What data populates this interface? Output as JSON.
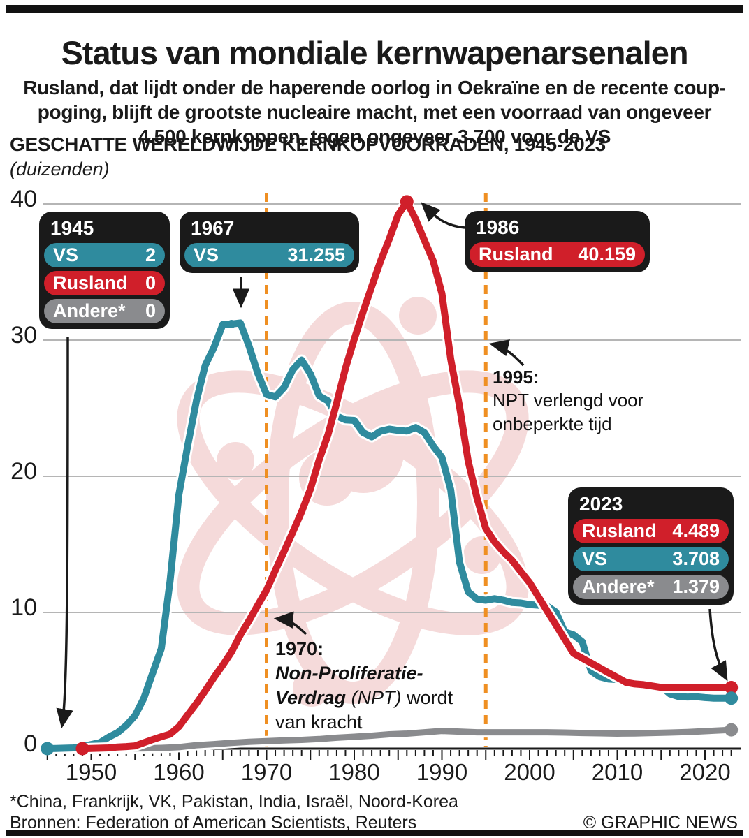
{
  "header": {
    "title": "Status van mondiale kernwapenarsenalen",
    "subtitle": "Rusland, dat lijdt onder de haperende oorlog in Oekraïne en de recente coup-\npoging, blijft de grootste nucleaire macht, met een voorraad van ongeveer\n4.500 kernkoppen, tegen ongeveer 3.700 voor de VS"
  },
  "chart_header": {
    "heading": "GESCHATTE WERELDWIJDE KERNKOPVOORRADEN, 1945-2023",
    "unit_note": "(duizenden)"
  },
  "chart_data": {
    "type": "line",
    "title": "Geschatte wereldwijde kernkopvoorraden, 1945-2023",
    "unit": "duizenden kernkoppen",
    "x_axis": {
      "range": [
        1945,
        2023
      ],
      "ticks": [
        1950,
        1960,
        1970,
        1980,
        1990,
        2000,
        2010,
        2020
      ],
      "minor_tick_every": 1
    },
    "y_axis": {
      "range": [
        0,
        40
      ],
      "ticks": [
        0,
        10,
        20,
        30,
        40
      ],
      "gridlines": true
    },
    "event_lines": [
      1970,
      1995
    ],
    "series": [
      {
        "name": "VS",
        "color": "#2f8b9e",
        "points": [
          [
            1945,
            0.0
          ],
          [
            1946,
            0.01
          ],
          [
            1947,
            0.03
          ],
          [
            1948,
            0.05
          ],
          [
            1949,
            0.17
          ],
          [
            1950,
            0.3
          ],
          [
            1951,
            0.44
          ],
          [
            1952,
            0.84
          ],
          [
            1953,
            1.17
          ],
          [
            1954,
            1.7
          ],
          [
            1955,
            2.42
          ],
          [
            1956,
            3.69
          ],
          [
            1957,
            5.54
          ],
          [
            1958,
            7.35
          ],
          [
            1959,
            12.3
          ],
          [
            1960,
            18.64
          ],
          [
            1961,
            22.23
          ],
          [
            1962,
            25.54
          ],
          [
            1963,
            28.13
          ],
          [
            1964,
            29.46
          ],
          [
            1965,
            31.14
          ],
          [
            1966,
            31.18
          ],
          [
            1967,
            31.26
          ],
          [
            1968,
            29.56
          ],
          [
            1969,
            27.55
          ],
          [
            1970,
            26.01
          ],
          [
            1971,
            25.83
          ],
          [
            1972,
            26.52
          ],
          [
            1973,
            27.84
          ],
          [
            1974,
            28.54
          ],
          [
            1975,
            27.52
          ],
          [
            1976,
            25.91
          ],
          [
            1977,
            25.54
          ],
          [
            1978,
            24.42
          ],
          [
            1979,
            24.14
          ],
          [
            1980,
            24.1
          ],
          [
            1981,
            23.21
          ],
          [
            1982,
            22.89
          ],
          [
            1983,
            23.31
          ],
          [
            1984,
            23.46
          ],
          [
            1985,
            23.37
          ],
          [
            1986,
            23.32
          ],
          [
            1987,
            23.58
          ],
          [
            1988,
            23.21
          ],
          [
            1989,
            22.22
          ],
          [
            1990,
            21.39
          ],
          [
            1991,
            19.01
          ],
          [
            1992,
            13.71
          ],
          [
            1993,
            11.51
          ],
          [
            1994,
            10.98
          ],
          [
            1995,
            10.9
          ],
          [
            1996,
            11.01
          ],
          [
            1997,
            10.9
          ],
          [
            1998,
            10.73
          ],
          [
            1999,
            10.69
          ],
          [
            2000,
            10.58
          ],
          [
            2001,
            10.53
          ],
          [
            2002,
            10.46
          ],
          [
            2003,
            10.03
          ],
          [
            2004,
            8.57
          ],
          [
            2005,
            8.36
          ],
          [
            2006,
            7.85
          ],
          [
            2007,
            5.71
          ],
          [
            2008,
            5.27
          ],
          [
            2009,
            5.11
          ],
          [
            2010,
            5.07
          ],
          [
            2011,
            4.9
          ],
          [
            2012,
            4.88
          ],
          [
            2013,
            4.8
          ],
          [
            2014,
            4.72
          ],
          [
            2015,
            4.57
          ],
          [
            2016,
            4.02
          ],
          [
            2017,
            3.82
          ],
          [
            2018,
            3.79
          ],
          [
            2019,
            3.81
          ],
          [
            2020,
            3.75
          ],
          [
            2021,
            3.71
          ],
          [
            2022,
            3.71
          ],
          [
            2023,
            3.708
          ]
        ]
      },
      {
        "name": "Rusland",
        "color": "#d01f2a",
        "points": [
          [
            1949,
            0.0
          ],
          [
            1950,
            0.01
          ],
          [
            1951,
            0.03
          ],
          [
            1952,
            0.05
          ],
          [
            1953,
            0.12
          ],
          [
            1954,
            0.15
          ],
          [
            1955,
            0.2
          ],
          [
            1956,
            0.43
          ],
          [
            1957,
            0.66
          ],
          [
            1958,
            0.87
          ],
          [
            1959,
            1.06
          ],
          [
            1960,
            1.61
          ],
          [
            1961,
            2.47
          ],
          [
            1962,
            3.32
          ],
          [
            1963,
            4.24
          ],
          [
            1964,
            5.22
          ],
          [
            1965,
            6.13
          ],
          [
            1966,
            7.09
          ],
          [
            1967,
            8.34
          ],
          [
            1968,
            9.4
          ],
          [
            1969,
            10.54
          ],
          [
            1970,
            11.64
          ],
          [
            1971,
            13.09
          ],
          [
            1972,
            14.48
          ],
          [
            1973,
            15.92
          ],
          [
            1974,
            17.39
          ],
          [
            1975,
            19.06
          ],
          [
            1976,
            21.21
          ],
          [
            1977,
            23.04
          ],
          [
            1978,
            25.39
          ],
          [
            1979,
            27.94
          ],
          [
            1980,
            30.06
          ],
          [
            1981,
            32.05
          ],
          [
            1982,
            33.95
          ],
          [
            1983,
            35.8
          ],
          [
            1984,
            37.43
          ],
          [
            1985,
            39.2
          ],
          [
            1986,
            40.159
          ],
          [
            1987,
            38.86
          ],
          [
            1988,
            37.33
          ],
          [
            1989,
            35.81
          ],
          [
            1990,
            33.42
          ],
          [
            1991,
            28.6
          ],
          [
            1992,
            25.16
          ],
          [
            1993,
            21.1
          ],
          [
            1994,
            18.4
          ],
          [
            1995,
            16.16
          ],
          [
            1996,
            15.19
          ],
          [
            1997,
            14.45
          ],
          [
            1998,
            13.82
          ],
          [
            1999,
            12.99
          ],
          [
            2000,
            12.19
          ],
          [
            2001,
            11.15
          ],
          [
            2002,
            10.11
          ],
          [
            2003,
            9.08
          ],
          [
            2004,
            8.04
          ],
          [
            2005,
            7.0
          ],
          [
            2006,
            6.64
          ],
          [
            2007,
            6.29
          ],
          [
            2008,
            5.93
          ],
          [
            2009,
            5.57
          ],
          [
            2010,
            5.22
          ],
          [
            2011,
            4.86
          ],
          [
            2012,
            4.75
          ],
          [
            2013,
            4.7
          ],
          [
            2014,
            4.6
          ],
          [
            2015,
            4.5
          ],
          [
            2016,
            4.49
          ],
          [
            2017,
            4.49
          ],
          [
            2018,
            4.46
          ],
          [
            2019,
            4.49
          ],
          [
            2020,
            4.48
          ],
          [
            2021,
            4.5
          ],
          [
            2022,
            4.48
          ],
          [
            2023,
            4.489
          ]
        ]
      },
      {
        "name": "Andere*",
        "color": "#8a8b8e",
        "points": [
          [
            1952,
            0.0
          ],
          [
            1954,
            0.01
          ],
          [
            1956,
            0.02
          ],
          [
            1958,
            0.05
          ],
          [
            1960,
            0.11
          ],
          [
            1962,
            0.25
          ],
          [
            1964,
            0.33
          ],
          [
            1966,
            0.42
          ],
          [
            1968,
            0.5
          ],
          [
            1970,
            0.55
          ],
          [
            1972,
            0.6
          ],
          [
            1974,
            0.64
          ],
          [
            1976,
            0.7
          ],
          [
            1978,
            0.8
          ],
          [
            1980,
            0.87
          ],
          [
            1982,
            0.95
          ],
          [
            1984,
            1.05
          ],
          [
            1986,
            1.1
          ],
          [
            1988,
            1.2
          ],
          [
            1990,
            1.3
          ],
          [
            1992,
            1.25
          ],
          [
            1994,
            1.2
          ],
          [
            1996,
            1.2
          ],
          [
            1998,
            1.2
          ],
          [
            2000,
            1.2
          ],
          [
            2002,
            1.2
          ],
          [
            2004,
            1.18
          ],
          [
            2006,
            1.15
          ],
          [
            2008,
            1.13
          ],
          [
            2010,
            1.1
          ],
          [
            2012,
            1.12
          ],
          [
            2014,
            1.15
          ],
          [
            2016,
            1.18
          ],
          [
            2018,
            1.22
          ],
          [
            2020,
            1.28
          ],
          [
            2022,
            1.35
          ],
          [
            2023,
            1.379
          ]
        ]
      }
    ],
    "markers": [
      {
        "series": "VS",
        "year": 1945
      },
      {
        "series": "Rusland",
        "year": 1949
      },
      {
        "series": "VS",
        "year": 1966,
        "small": true
      },
      {
        "series": "Rusland",
        "year": 1986
      },
      {
        "series": "Rusland",
        "year": 2023
      },
      {
        "series": "VS",
        "year": 2023
      },
      {
        "series": "Andere*",
        "year": 2023
      }
    ],
    "legend_position": "callout-boxes"
  },
  "callouts": [
    {
      "year": "1945",
      "rows": [
        {
          "label": "VS",
          "value": "2",
          "color": "teal"
        },
        {
          "label": "Rusland",
          "value": "0",
          "color": "red"
        },
        {
          "label": "Andere*",
          "value": "0",
          "color": "gray"
        }
      ]
    },
    {
      "year": "1967",
      "rows": [
        {
          "label": "VS",
          "value": "31.255",
          "color": "teal"
        }
      ]
    },
    {
      "year": "1986",
      "rows": [
        {
          "label": "Rusland",
          "value": "40.159",
          "color": "red"
        }
      ]
    },
    {
      "year": "2023",
      "rows": [
        {
          "label": "Rusland",
          "value": "4.489",
          "color": "red"
        },
        {
          "label": "VS",
          "value": "3.708",
          "color": "teal"
        },
        {
          "label": "Andere*",
          "value": "1.379",
          "color": "gray"
        }
      ]
    }
  ],
  "annotations": {
    "y1995": {
      "year": "1995:",
      "line1": "NPT verlengd voor",
      "line2": "onbeperkte tijd"
    },
    "y1970": {
      "year": "1970:",
      "line1": "Non-Proliferatie-",
      "line2_bi": "Verdrag",
      "line2_i": "(NPT)",
      "line2_rest": "wordt",
      "line3": "van kracht"
    }
  },
  "footer": {
    "note": "*China, Frankrijk, VK, Pakistan, India, Israël, Noord-Korea",
    "sources": "Bronnen: Federation of American Scientists, Reuters",
    "credit": "© GRAPHIC NEWS"
  },
  "colors": {
    "teal": "#2f8b9e",
    "red": "#d01f2a",
    "gray": "#8a8b8e",
    "orange_event_line": "#ef8f22",
    "callout_box": "#1a1a1a",
    "gridline": "#b5b5b5",
    "watermark_pink": "#f5dada"
  }
}
